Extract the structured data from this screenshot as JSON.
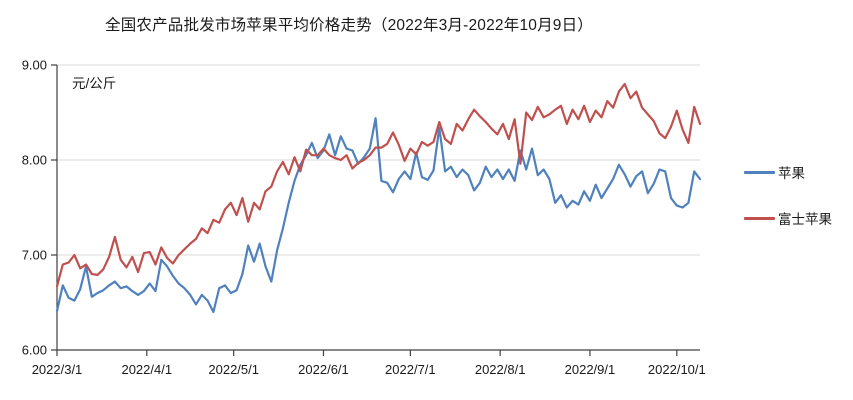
{
  "chart_data": {
    "type": "line",
    "title": "全国农产品批发市场苹果平均价格走势（2022年3月-2022年10月9日）",
    "unit_label": "元/公斤",
    "ylim": [
      6.0,
      9.0
    ],
    "y_tick_values": [
      9.0,
      8.0,
      7.0,
      6.0
    ],
    "y_tick_labels": [
      "9.00",
      "8.00",
      "7.00",
      "6.00"
    ],
    "x_tick_labels": [
      "2022/3/1",
      "2022/4/1",
      "2022/5/1",
      "2022/6/1",
      "2022/7/1",
      "2022/8/1",
      "2022/9/1",
      "2022/10/1"
    ],
    "x_tick_days": [
      0,
      31,
      61,
      92,
      122,
      153,
      184,
      214
    ],
    "x_total_days": 222,
    "point_interval_days": 2,
    "grid": true,
    "legend_position": "right",
    "grid_color": "#d9d9d9",
    "axis_color": "#404040",
    "series": [
      {
        "name": "苹果",
        "color": "#4f81bd",
        "values": [
          6.41,
          6.68,
          6.55,
          6.52,
          6.64,
          6.88,
          6.56,
          6.6,
          6.63,
          6.68,
          6.72,
          6.65,
          6.67,
          6.62,
          6.58,
          6.62,
          6.7,
          6.62,
          6.95,
          6.88,
          6.78,
          6.7,
          6.65,
          6.58,
          6.48,
          6.58,
          6.52,
          6.4,
          6.65,
          6.68,
          6.6,
          6.63,
          6.8,
          7.1,
          6.93,
          7.12,
          6.88,
          6.72,
          7.05,
          7.28,
          7.55,
          7.78,
          7.95,
          8.05,
          8.18,
          8.02,
          8.1,
          8.27,
          8.05,
          8.25,
          8.12,
          8.1,
          7.96,
          8.03,
          8.12,
          8.44,
          7.78,
          7.76,
          7.66,
          7.8,
          7.88,
          7.8,
          8.08,
          7.82,
          7.79,
          7.89,
          8.34,
          7.88,
          7.93,
          7.82,
          7.9,
          7.84,
          7.68,
          7.76,
          7.93,
          7.82,
          7.9,
          7.8,
          7.9,
          7.78,
          8.1,
          7.9,
          8.12,
          7.84,
          7.9,
          7.8,
          7.55,
          7.63,
          7.5,
          7.57,
          7.53,
          7.67,
          7.57,
          7.74,
          7.6,
          7.7,
          7.8,
          7.95,
          7.85,
          7.72,
          7.83,
          7.88,
          7.65,
          7.75,
          7.9,
          7.88,
          7.6,
          7.52,
          7.5,
          7.55,
          7.88,
          7.8
        ]
      },
      {
        "name": "富士苹果",
        "color": "#c0504d",
        "values": [
          6.67,
          6.9,
          6.92,
          7.0,
          6.86,
          6.9,
          6.8,
          6.79,
          6.85,
          6.98,
          7.19,
          6.95,
          6.87,
          6.98,
          6.82,
          7.02,
          7.03,
          6.9,
          7.08,
          6.97,
          6.91,
          7.0,
          7.06,
          7.12,
          7.17,
          7.28,
          7.23,
          7.37,
          7.34,
          7.48,
          7.55,
          7.42,
          7.6,
          7.35,
          7.55,
          7.48,
          7.67,
          7.72,
          7.88,
          7.98,
          7.85,
          8.03,
          7.88,
          8.11,
          8.05,
          8.05,
          8.12,
          8.05,
          8.02,
          8.0,
          8.05,
          7.91,
          7.97,
          8.0,
          8.05,
          8.13,
          8.13,
          8.17,
          8.29,
          8.16,
          7.99,
          8.12,
          8.06,
          8.19,
          8.15,
          8.19,
          8.4,
          8.22,
          8.17,
          8.38,
          8.31,
          8.43,
          8.53,
          8.46,
          8.4,
          8.33,
          8.27,
          8.38,
          8.22,
          8.43,
          7.96,
          8.5,
          8.42,
          8.56,
          8.45,
          8.48,
          8.53,
          8.57,
          8.38,
          8.53,
          8.43,
          8.57,
          8.4,
          8.52,
          8.45,
          8.62,
          8.55,
          8.72,
          8.8,
          8.65,
          8.72,
          8.55,
          8.48,
          8.41,
          8.28,
          8.23,
          8.35,
          8.52,
          8.32,
          8.18,
          8.56,
          8.38
        ]
      }
    ]
  }
}
